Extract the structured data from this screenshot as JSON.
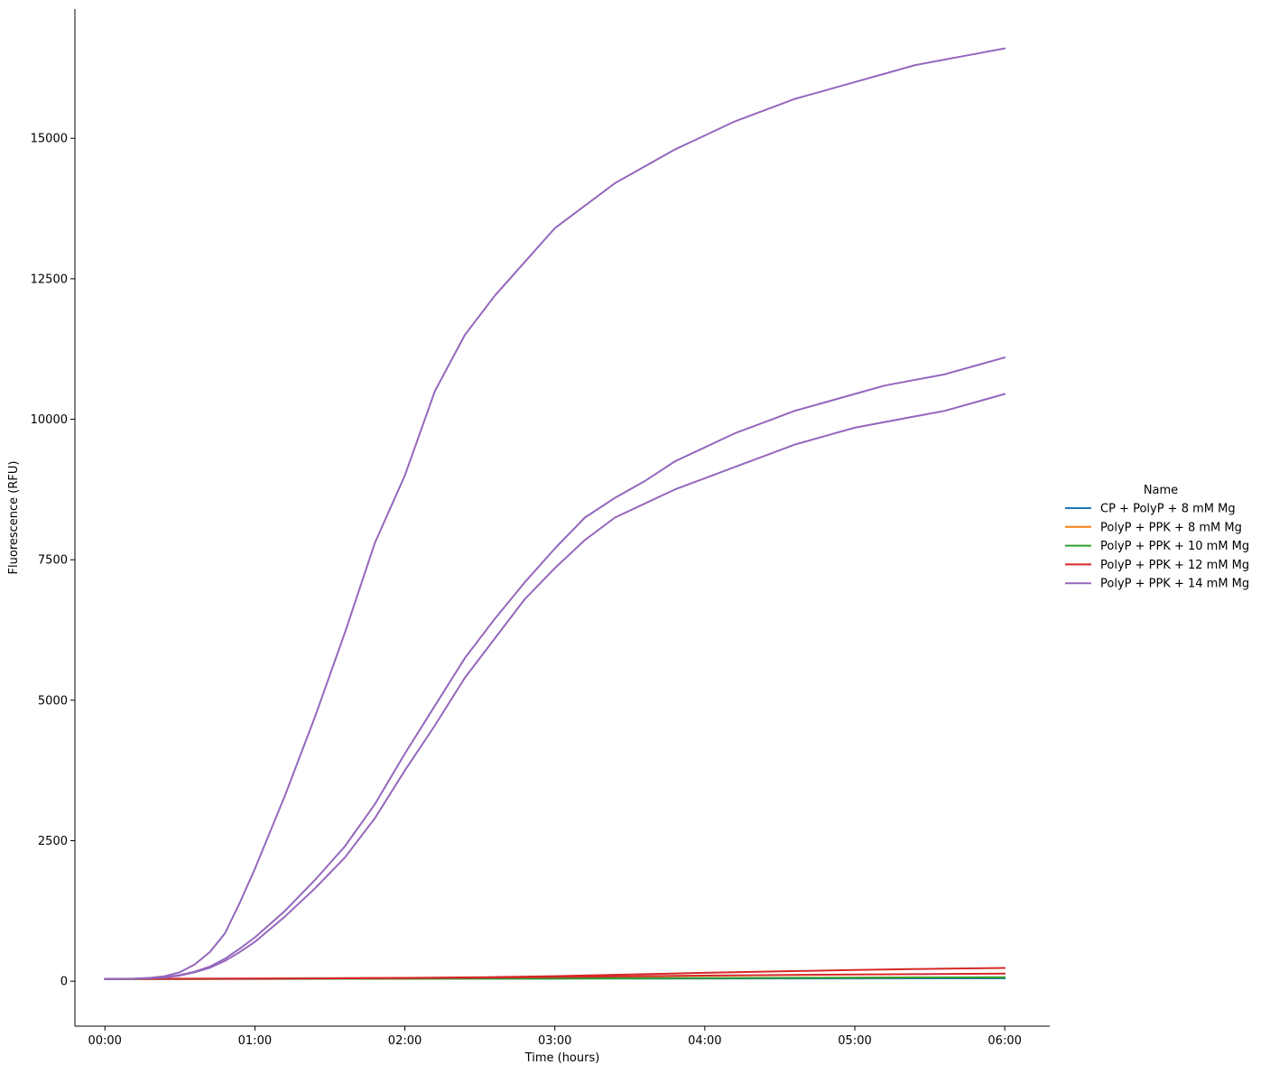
{
  "chart_data": {
    "type": "line",
    "xlabel": "Time (hours)",
    "ylabel": "Fluorescence (RFU)",
    "x_unit": "hours",
    "xlim": [
      -0.2,
      6.3
    ],
    "ylim": [
      -800,
      17300
    ],
    "x_ticks": [
      {
        "value": 0,
        "label": "00:00"
      },
      {
        "value": 1,
        "label": "01:00"
      },
      {
        "value": 2,
        "label": "02:00"
      },
      {
        "value": 3,
        "label": "03:00"
      },
      {
        "value": 4,
        "label": "04:00"
      },
      {
        "value": 5,
        "label": "05:00"
      },
      {
        "value": 6,
        "label": "06:00"
      }
    ],
    "y_ticks": [
      {
        "value": 0,
        "label": "0"
      },
      {
        "value": 2500,
        "label": "2500"
      },
      {
        "value": 5000,
        "label": "5000"
      },
      {
        "value": 7500,
        "label": "7500"
      },
      {
        "value": 10000,
        "label": "10000"
      },
      {
        "value": 12500,
        "label": "12500"
      },
      {
        "value": 15000,
        "label": "15000"
      }
    ],
    "grid": false,
    "legend": {
      "title": "Name",
      "placement": "right"
    },
    "series": [
      {
        "name": "CP + PolyP + 8 mM Mg",
        "color": "#1f77b4",
        "x": [
          0,
          1,
          2,
          3,
          4,
          5,
          6
        ],
        "y": [
          40,
          42,
          44,
          46,
          48,
          50,
          52
        ]
      },
      {
        "name": "PolyP + PPK + 8 mM Mg",
        "color": "#ff7f0e",
        "x": [
          0,
          1,
          2,
          3,
          4,
          5,
          6
        ],
        "y": [
          40,
          43,
          47,
          52,
          58,
          64,
          70
        ]
      },
      {
        "name": "PolyP + PPK + 10 mM Mg",
        "color": "#2ca02c",
        "x": [
          0,
          1,
          2,
          3,
          4,
          5,
          6
        ],
        "y": [
          40,
          42,
          45,
          49,
          55,
          62,
          70
        ]
      },
      {
        "name": "PolyP + PPK + 12 mM Mg",
        "color": "#d62728",
        "x": [
          0,
          1,
          2,
          3,
          4,
          5,
          6
        ],
        "y": [
          40,
          45,
          55,
          75,
          100,
          120,
          135
        ]
      },
      {
        "name": "PolyP + PPK + 12 mM Mg",
        "color": "#d62728",
        "x": [
          0,
          1,
          2,
          2.5,
          3,
          3.5,
          4,
          4.5,
          5,
          5.5,
          6
        ],
        "y": [
          40,
          48,
          60,
          70,
          90,
          120,
          150,
          175,
          200,
          220,
          235
        ]
      },
      {
        "name": "PolyP + PPK + 14 mM Mg",
        "color": "#9467bd",
        "x": [
          0,
          0.1,
          0.2,
          0.3,
          0.4,
          0.5,
          0.6,
          0.7,
          0.8,
          0.9,
          1.0,
          1.2,
          1.4,
          1.6,
          1.8,
          2.0,
          2.2,
          2.4,
          2.6,
          2.8,
          3.0,
          3.2,
          3.4,
          3.6,
          3.8,
          4.0,
          4.2,
          4.4,
          4.6,
          4.8,
          5.0,
          5.2,
          5.4,
          5.6,
          5.8,
          6.0
        ],
        "y": [
          40,
          42,
          48,
          60,
          90,
          160,
          300,
          520,
          850,
          1400,
          2000,
          3300,
          4700,
          6200,
          7800,
          9000,
          10500,
          11500,
          12200,
          12800,
          13400,
          13800,
          14200,
          14500,
          14800,
          15050,
          15300,
          15500,
          15700,
          15850,
          16000,
          16150,
          16300,
          16400,
          16500,
          16600
        ]
      },
      {
        "name": "PolyP + PPK + 14 mM Mg",
        "color": "#9467bd",
        "x": [
          0,
          0.2,
          0.4,
          0.5,
          0.6,
          0.7,
          0.8,
          0.9,
          1.0,
          1.2,
          1.4,
          1.6,
          1.8,
          2.0,
          2.2,
          2.4,
          2.6,
          2.8,
          3.0,
          3.2,
          3.4,
          3.6,
          3.8,
          4.0,
          4.2,
          4.4,
          4.6,
          4.8,
          5.0,
          5.2,
          5.4,
          5.6,
          5.8,
          6.0
        ],
        "y": [
          40,
          45,
          70,
          110,
          170,
          260,
          400,
          580,
          780,
          1250,
          1800,
          2400,
          3150,
          4050,
          4900,
          5750,
          6450,
          7100,
          7700,
          8250,
          8600,
          8900,
          9250,
          9500,
          9750,
          9950,
          10150,
          10300,
          10450,
          10600,
          10700,
          10800,
          10950,
          11100
        ]
      },
      {
        "name": "PolyP + PPK + 14 mM Mg",
        "color": "#9467bd",
        "x": [
          0,
          0.2,
          0.4,
          0.5,
          0.6,
          0.7,
          0.8,
          0.9,
          1.0,
          1.2,
          1.4,
          1.6,
          1.8,
          2.0,
          2.2,
          2.4,
          2.6,
          2.8,
          3.0,
          3.2,
          3.4,
          3.6,
          3.8,
          4.0,
          4.2,
          4.4,
          4.6,
          4.8,
          5.0,
          5.2,
          5.4,
          5.6,
          5.8,
          6.0
        ],
        "y": [
          40,
          45,
          65,
          100,
          160,
          240,
          360,
          520,
          700,
          1150,
          1650,
          2200,
          2900,
          3750,
          4550,
          5400,
          6100,
          6800,
          7350,
          7850,
          8250,
          8500,
          8750,
          8950,
          9150,
          9350,
          9550,
          9700,
          9850,
          9950,
          10050,
          10150,
          10300,
          10450
        ]
      }
    ]
  }
}
